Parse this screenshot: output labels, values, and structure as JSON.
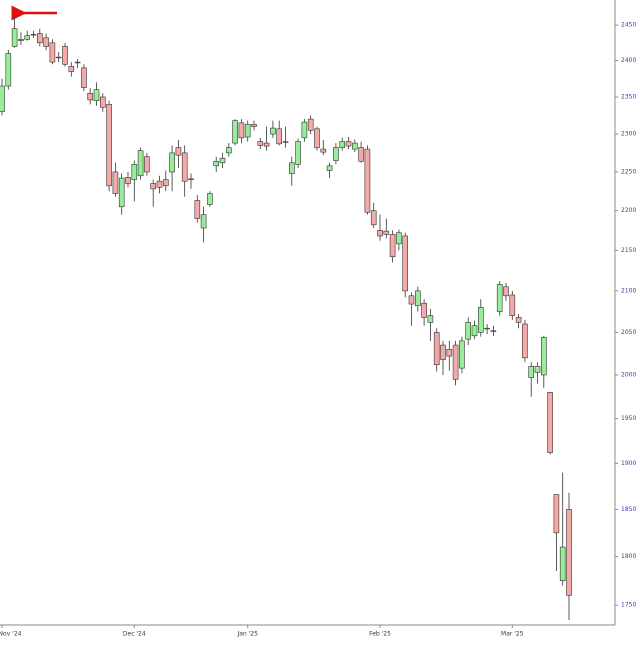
{
  "chart_data": {
    "type": "candlestick",
    "categories": [
      "Nov '24",
      null,
      null,
      null,
      null,
      null,
      null,
      null,
      null,
      null,
      null,
      null,
      null,
      null,
      null,
      null,
      null,
      null,
      null,
      null,
      null,
      "Dec '24",
      null,
      null,
      null,
      null,
      null,
      null,
      null,
      null,
      null,
      null,
      null,
      null,
      null,
      null,
      null,
      null,
      null,
      "Jan '25",
      null,
      null,
      null,
      null,
      null,
      null,
      null,
      null,
      null,
      null,
      null,
      null,
      null,
      null,
      null,
      null,
      null,
      null,
      null,
      null,
      "Feb '25",
      null,
      null,
      null,
      null,
      null,
      null,
      null,
      null,
      null,
      null,
      null,
      null,
      null,
      null,
      null,
      null,
      null,
      null,
      null,
      null,
      "Mar '25",
      null,
      null,
      null,
      null,
      null,
      null,
      null,
      null,
      null
    ],
    "open": [
      2330,
      2365,
      2420,
      2430,
      2430,
      2436,
      2438,
      2432,
      2425,
      2405,
      2420,
      2392,
      2398,
      2390,
      2355,
      2345,
      2350,
      2340,
      2250,
      2205,
      2243,
      2240,
      2245,
      2270,
      2235,
      2238,
      2240,
      2250,
      2282,
      2275,
      2240,
      2213,
      2178,
      2208,
      2258,
      2262,
      2275,
      2288,
      2315,
      2296,
      2313,
      2290,
      2288,
      2300,
      2307,
      2290,
      2248,
      2260,
      2295,
      2320,
      2307,
      2280,
      2252,
      2265,
      2282,
      2290,
      2280,
      2282,
      2280,
      2200,
      2175,
      2174,
      2170,
      2158,
      2168,
      2094,
      2082,
      2085,
      2062,
      2050,
      2035,
      2030,
      2035,
      2008,
      2042,
      2046,
      2050,
      2055,
      2052,
      2075,
      2105,
      2095,
      2068,
      2060,
      1997,
      2003,
      2000,
      1980,
      1866,
      1775,
      1850
    ],
    "high": [
      2375,
      2415,
      2462,
      2440,
      2442,
      2442,
      2445,
      2438,
      2430,
      2412,
      2425,
      2398,
      2402,
      2395,
      2362,
      2370,
      2355,
      2345,
      2262,
      2248,
      2250,
      2265,
      2282,
      2275,
      2240,
      2245,
      2252,
      2285,
      2292,
      2285,
      2248,
      2220,
      2205,
      2225,
      2270,
      2275,
      2288,
      2320,
      2320,
      2318,
      2318,
      2295,
      2310,
      2318,
      2318,
      2310,
      2270,
      2294,
      2320,
      2325,
      2310,
      2292,
      2262,
      2288,
      2295,
      2296,
      2293,
      2290,
      2285,
      2210,
      2195,
      2190,
      2175,
      2176,
      2172,
      2098,
      2105,
      2090,
      2078,
      2055,
      2040,
      2040,
      2040,
      2045,
      2068,
      2064,
      2090,
      2060,
      2058,
      2112,
      2110,
      2100,
      2072,
      2065,
      2015,
      2015,
      2046,
      1980,
      1866,
      1890,
      1868
    ],
    "low": [
      2325,
      2360,
      2418,
      2422,
      2428,
      2432,
      2420,
      2415,
      2395,
      2398,
      2392,
      2378,
      2390,
      2358,
      2340,
      2338,
      2330,
      2225,
      2218,
      2195,
      2230,
      2212,
      2240,
      2245,
      2205,
      2222,
      2225,
      2225,
      2255,
      2218,
      2228,
      2185,
      2160,
      2205,
      2250,
      2255,
      2270,
      2285,
      2288,
      2290,
      2305,
      2280,
      2278,
      2295,
      2285,
      2282,
      2232,
      2255,
      2290,
      2300,
      2278,
      2272,
      2242,
      2260,
      2278,
      2280,
      2276,
      2262,
      2195,
      2178,
      2162,
      2165,
      2135,
      2150,
      2092,
      2058,
      2075,
      2058,
      2040,
      2004,
      2000,
      2005,
      1988,
      2002,
      2035,
      2042,
      2045,
      2048,
      2046,
      2070,
      2088,
      2065,
      2055,
      2015,
      1975,
      1990,
      1985,
      1910,
      1785,
      1770,
      1735
    ],
    "close": [
      2365,
      2410,
      2445,
      2428,
      2435,
      2437,
      2425,
      2420,
      2398,
      2404,
      2395,
      2385,
      2397,
      2363,
      2346,
      2360,
      2336,
      2232,
      2222,
      2242,
      2235,
      2260,
      2278,
      2250,
      2228,
      2230,
      2232,
      2275,
      2272,
      2238,
      2241,
      2190,
      2195,
      2222,
      2264,
      2268,
      2282,
      2318,
      2295,
      2313,
      2310,
      2285,
      2284,
      2308,
      2287,
      2289,
      2262,
      2290,
      2316,
      2305,
      2282,
      2276,
      2258,
      2282,
      2290,
      2284,
      2288,
      2264,
      2198,
      2182,
      2168,
      2170,
      2142,
      2172,
      2100,
      2084,
      2100,
      2068,
      2070,
      2012,
      2018,
      2022,
      1995,
      2040,
      2062,
      2058,
      2080,
      2055,
      2051,
      2108,
      2094,
      2070,
      2062,
      2020,
      2010,
      2010,
      2044,
      1912,
      1825,
      1810,
      1760
    ],
    "up_color": "#98ee98",
    "down_color": "#f5aaaa",
    "ylim": [
      1733,
      2486
    ],
    "log": true,
    "yticks": [
      1750,
      1800,
      1850,
      1900,
      1950,
      2000,
      2050,
      2100,
      2150,
      2200,
      2250,
      2300,
      2350,
      2400,
      2450
    ]
  }
}
